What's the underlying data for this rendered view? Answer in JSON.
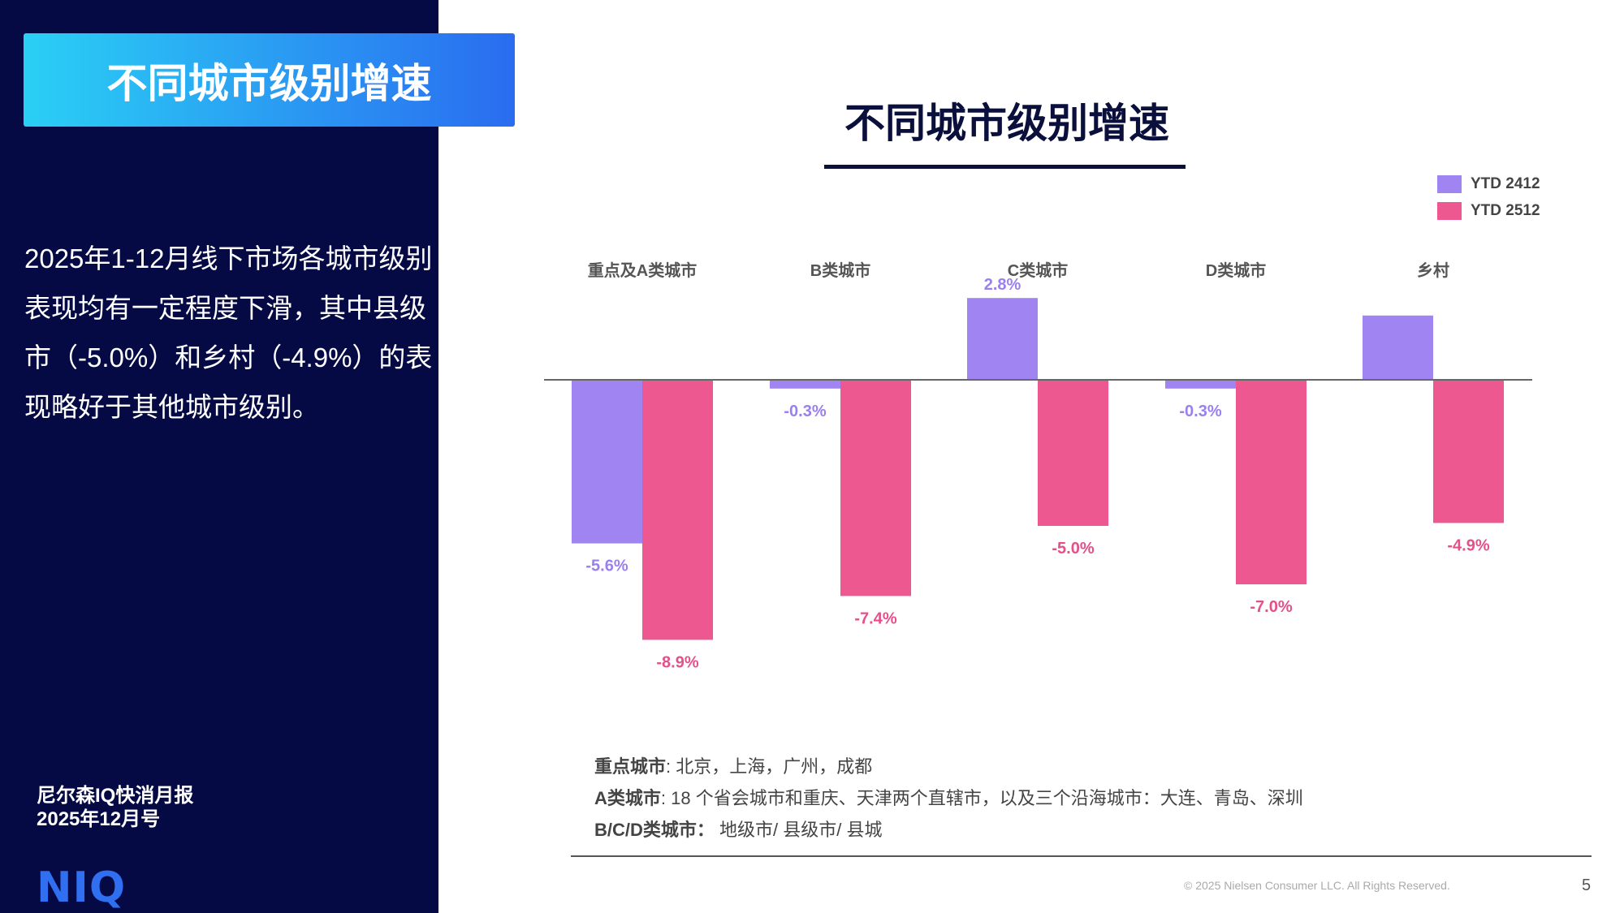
{
  "sidebar": {
    "banner_title": "不同城市级别增速",
    "paragraph": "2025年1-12月线下市场各城市级别表现均有一定程度下滑，其中县级市（-5.0%）和乡村（-4.9%）的表现略好于其他城市级别。",
    "report_name": "尼尔森IQ快消月报",
    "report_issue": "2025年12月号",
    "logo": "NIQ"
  },
  "chart_data": {
    "type": "bar",
    "title": "不同城市级别增速",
    "categories": [
      "重点及A类城市",
      "B类城市",
      "C类城市",
      "D类城市",
      "乡村"
    ],
    "series": [
      {
        "name": "YTD 2412",
        "color": "#a084f2",
        "label_color": "#9a80ee",
        "values": [
          -5.6,
          -0.3,
          2.8,
          -0.3,
          2.2
        ],
        "labels": [
          "-5.6%",
          "-0.3%",
          "2.8%",
          "-0.3%",
          ""
        ]
      },
      {
        "name": "YTD 2512",
        "color": "#ee5890",
        "label_color": "#e4508a",
        "values": [
          -8.9,
          -7.4,
          -5.0,
          -7.0,
          -4.9
        ],
        "labels": [
          "-8.9%",
          "-7.4%",
          "-5.0%",
          "-7.0%",
          "-4.9%"
        ]
      }
    ],
    "legend_position": "top-right",
    "grid": false
  },
  "notes": [
    {
      "term": "重点城市",
      "text": ": 北京，上海，广州，成都"
    },
    {
      "term": "A类城市",
      "text": ": 18 个省会城市和重庆、天津两个直辖市，以及三个沿海城市：大连、青岛、深圳"
    },
    {
      "term": "B/C/D类城市：",
      "text": " 地级市/ 县级市/ 县城"
    }
  ],
  "footer": {
    "copyright": "© 2025 Nielsen Consumer LLC. All Rights Reserved.",
    "page_number": "5"
  }
}
